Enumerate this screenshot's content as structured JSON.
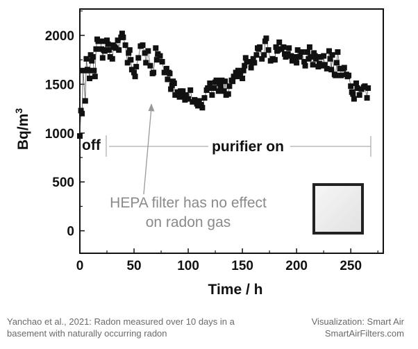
{
  "chart_data": {
    "type": "scatter",
    "xlabel": "Time / h",
    "ylabel": "Bq/m3",
    "xlim": [
      0,
      280
    ],
    "ylim": [
      -230,
      2270
    ],
    "x_ticks": [
      "0",
      "50",
      "100",
      "150",
      "200",
      "250"
    ],
    "y_ticks": [
      "0",
      "500",
      "1000",
      "1500",
      "2000"
    ],
    "marker": "filled-square",
    "series_color": "#111111",
    "points": [
      [
        0,
        970
      ],
      [
        1,
        1230
      ],
      [
        2,
        1200
      ],
      [
        3,
        1640
      ],
      [
        5,
        1330
      ],
      [
        6,
        1760
      ],
      [
        7,
        1650
      ],
      [
        8,
        1640
      ],
      [
        9,
        1560
      ],
      [
        10,
        1800
      ],
      [
        11,
        1740
      ],
      [
        12,
        1780
      ],
      [
        13,
        1640
      ],
      [
        14,
        1580
      ],
      [
        15,
        1860
      ],
      [
        16,
        1960
      ],
      [
        17,
        1940
      ],
      [
        19,
        1940
      ],
      [
        20,
        1860
      ],
      [
        21,
        1770
      ],
      [
        22,
        1850
      ],
      [
        23,
        1840
      ],
      [
        24,
        1940
      ],
      [
        25,
        1950
      ],
      [
        26,
        1910
      ],
      [
        27,
        1850
      ],
      [
        28,
        1780
      ],
      [
        30,
        1760
      ],
      [
        31,
        1900
      ],
      [
        32,
        1880
      ],
      [
        33,
        1870
      ],
      [
        35,
        1950
      ],
      [
        36,
        1850
      ],
      [
        38,
        1980
      ],
      [
        39,
        2020
      ],
      [
        40,
        1980
      ],
      [
        42,
        1900
      ],
      [
        44,
        1720
      ],
      [
        45,
        1820
      ],
      [
        46,
        1850
      ],
      [
        47,
        1750
      ],
      [
        48,
        1650
      ],
      [
        50,
        1620
      ],
      [
        51,
        1580
      ],
      [
        52,
        1680
      ],
      [
        54,
        1770
      ],
      [
        56,
        1890
      ],
      [
        58,
        1900
      ],
      [
        60,
        1820
      ],
      [
        61,
        1720
      ],
      [
        63,
        1840
      ],
      [
        65,
        1690
      ],
      [
        67,
        1610
      ],
      [
        68,
        1620
      ],
      [
        70,
        1870
      ],
      [
        71,
        1750
      ],
      [
        72,
        1810
      ],
      [
        74,
        1790
      ],
      [
        76,
        1730
      ],
      [
        78,
        1620
      ],
      [
        80,
        1660
      ],
      [
        81,
        1550
      ],
      [
        82,
        1620
      ],
      [
        83,
        1610
      ],
      [
        84,
        1450
      ],
      [
        85,
        1490
      ],
      [
        86,
        1530
      ],
      [
        87,
        1510
      ],
      [
        88,
        1390
      ],
      [
        90,
        1420
      ],
      [
        91,
        1390
      ],
      [
        92,
        1370
      ],
      [
        93,
        1430
      ],
      [
        95,
        1430
      ],
      [
        96,
        1380
      ],
      [
        97,
        1340
      ],
      [
        98,
        1390
      ],
      [
        100,
        1350
      ],
      [
        102,
        1440
      ],
      [
        104,
        1320
      ],
      [
        106,
        1340
      ],
      [
        108,
        1300
      ],
      [
        109,
        1280
      ],
      [
        110,
        1330
      ],
      [
        112,
        1290
      ],
      [
        113,
        1260
      ],
      [
        115,
        1360
      ],
      [
        117,
        1440
      ],
      [
        118,
        1460
      ],
      [
        120,
        1510
      ],
      [
        121,
        1460
      ],
      [
        122,
        1390
      ],
      [
        124,
        1460
      ],
      [
        125,
        1520
      ],
      [
        126,
        1540
      ],
      [
        128,
        1430
      ],
      [
        129,
        1510
      ],
      [
        130,
        1480
      ],
      [
        131,
        1540
      ],
      [
        133,
        1430
      ],
      [
        134,
        1530
      ],
      [
        135,
        1390
      ],
      [
        137,
        1400
      ],
      [
        138,
        1480
      ],
      [
        140,
        1540
      ],
      [
        141,
        1530
      ],
      [
        142,
        1580
      ],
      [
        144,
        1620
      ],
      [
        145,
        1580
      ],
      [
        146,
        1640
      ],
      [
        148,
        1600
      ],
      [
        150,
        1560
      ],
      [
        151,
        1640
      ],
      [
        152,
        1690
      ],
      [
        153,
        1770
      ],
      [
        154,
        1730
      ],
      [
        156,
        1730
      ],
      [
        158,
        1670
      ],
      [
        159,
        1720
      ],
      [
        160,
        1760
      ],
      [
        161,
        1720
      ],
      [
        163,
        1800
      ],
      [
        164,
        1870
      ],
      [
        165,
        1860
      ],
      [
        166,
        1880
      ],
      [
        168,
        1760
      ],
      [
        170,
        1800
      ],
      [
        171,
        1940
      ],
      [
        172,
        1970
      ],
      [
        174,
        1850
      ],
      [
        176,
        1740
      ],
      [
        178,
        1760
      ],
      [
        180,
        1750
      ],
      [
        181,
        1880
      ],
      [
        182,
        1840
      ],
      [
        183,
        1850
      ],
      [
        184,
        1930
      ],
      [
        186,
        1860
      ],
      [
        188,
        1880
      ],
      [
        189,
        1810
      ],
      [
        190,
        1780
      ],
      [
        192,
        1810
      ],
      [
        193,
        1870
      ],
      [
        195,
        1790
      ],
      [
        196,
        1740
      ],
      [
        198,
        1780
      ],
      [
        199,
        1760
      ],
      [
        200,
        1720
      ],
      [
        201,
        1850
      ],
      [
        203,
        1780
      ],
      [
        204,
        1830
      ],
      [
        205,
        1830
      ],
      [
        207,
        1730
      ],
      [
        208,
        1690
      ],
      [
        210,
        1830
      ],
      [
        211,
        1760
      ],
      [
        212,
        1880
      ],
      [
        213,
        1780
      ],
      [
        215,
        1700
      ],
      [
        216,
        1820
      ],
      [
        217,
        1790
      ],
      [
        218,
        1760
      ],
      [
        220,
        1680
      ],
      [
        221,
        1710
      ],
      [
        222,
        1780
      ],
      [
        224,
        1690
      ],
      [
        225,
        1790
      ],
      [
        226,
        1700
      ],
      [
        228,
        1660
      ],
      [
        230,
        1840
      ],
      [
        231,
        1760
      ],
      [
        232,
        1650
      ],
      [
        233,
        1800
      ],
      [
        235,
        1600
      ],
      [
        236,
        1590
      ],
      [
        237,
        1720
      ],
      [
        238,
        1830
      ],
      [
        240,
        1660
      ],
      [
        241,
        1590
      ],
      [
        243,
        1660
      ],
      [
        244,
        1670
      ],
      [
        246,
        1600
      ],
      [
        247,
        1580
      ],
      [
        248,
        1590
      ],
      [
        250,
        1480
      ],
      [
        251,
        1420
      ],
      [
        252,
        1400
      ],
      [
        253,
        1350
      ],
      [
        255,
        1510
      ],
      [
        256,
        1460
      ],
      [
        258,
        1390
      ],
      [
        260,
        1450
      ],
      [
        262,
        1470
      ],
      [
        263,
        1480
      ],
      [
        265,
        1360
      ],
      [
        266,
        1460
      ]
    ],
    "annotations": {
      "off_label": "off",
      "on_label": "purifier on",
      "callout_line1": "HEPA filter has no effect",
      "callout_line2": "on radon gas"
    }
  },
  "footer": {
    "source_line1": "Yanchao et al., 2021: Radon measured over 10 days in a",
    "source_line2": "basement with naturally occurring radon",
    "credit_line1": "Visualization: Smart Air",
    "credit_line2": "SmartAirFilters.com"
  },
  "colors": {
    "axis": "#111111",
    "annotation_gray": "#8a8a8a",
    "footer_text": "#6a6a6a"
  }
}
